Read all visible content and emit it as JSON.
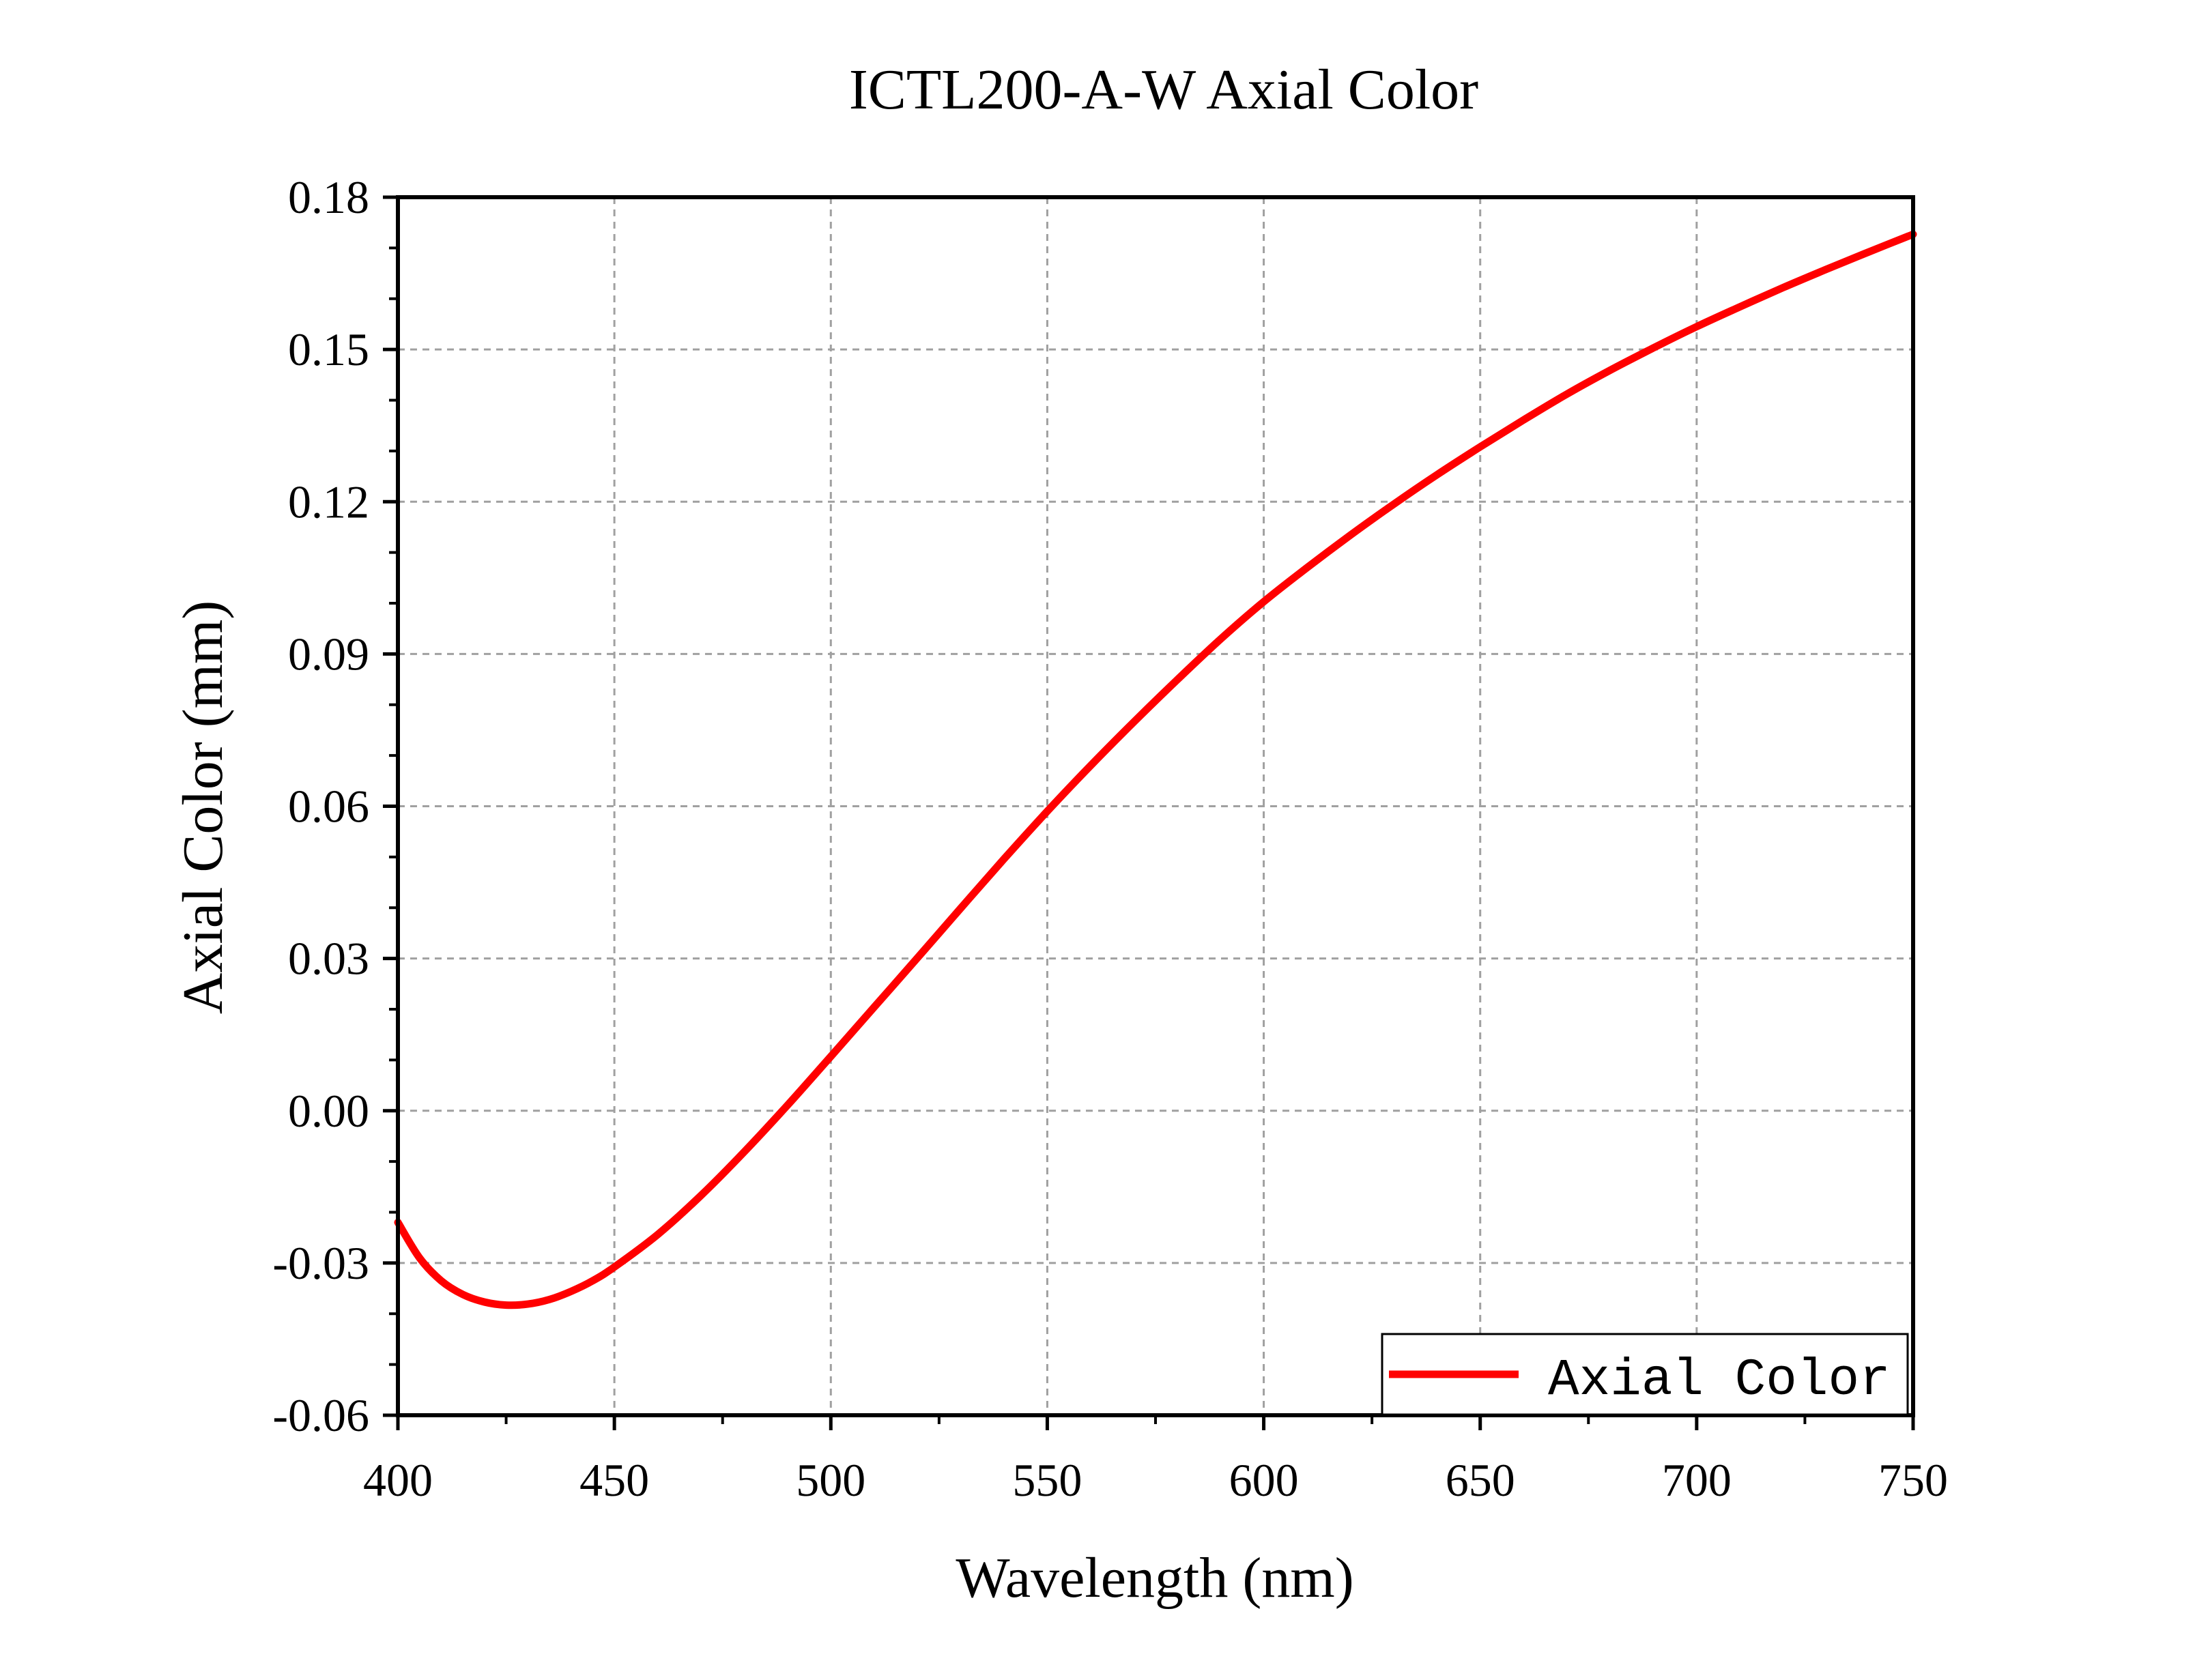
{
  "chart_data": {
    "type": "line",
    "title": "ICTL200-A-W Axial Color",
    "xlabel": "Wavelength (nm)",
    "ylabel": "Axial Color (mm)",
    "xlim": [
      400,
      750
    ],
    "ylim": [
      -0.06,
      0.18
    ],
    "x_ticks": [
      400,
      450,
      500,
      550,
      600,
      650,
      700,
      750
    ],
    "x_tick_labels": [
      "400",
      "450",
      "500",
      "550",
      "600",
      "650",
      "700",
      "750"
    ],
    "y_ticks": [
      -0.06,
      -0.03,
      0.0,
      0.03,
      0.06,
      0.09,
      0.12,
      0.15,
      0.18
    ],
    "y_tick_labels": [
      "-0.06",
      "-0.03",
      "0.00",
      "0.03",
      "0.06",
      "0.09",
      "0.12",
      "0.15",
      "0.18"
    ],
    "grid": true,
    "legend_position": "bottom-right",
    "series": [
      {
        "name": "Axial Color",
        "color": "#ff0000",
        "x": [
          400,
          405,
          410,
          415,
          420,
          425,
          430,
          435,
          440,
          445,
          450,
          460,
          470,
          480,
          490,
          500,
          510,
          520,
          530,
          540,
          550,
          560,
          570,
          580,
          590,
          600,
          610,
          620,
          630,
          640,
          650,
          660,
          670,
          680,
          690,
          700,
          710,
          720,
          730,
          740,
          750
        ],
        "y": [
          -0.022,
          -0.029,
          -0.0335,
          -0.0362,
          -0.0377,
          -0.0383,
          -0.0381,
          -0.0372,
          -0.0356,
          -0.0335,
          -0.0308,
          -0.0244,
          -0.0167,
          -0.0081,
          0.0011,
          0.0107,
          0.0204,
          0.0301,
          0.0399,
          0.0496,
          0.059,
          0.068,
          0.0766,
          0.0849,
          0.0929,
          0.1003,
          0.107,
          0.1134,
          0.1195,
          0.1253,
          0.1308,
          0.1361,
          0.1412,
          0.1459,
          0.1503,
          0.1545,
          0.1584,
          0.1622,
          0.1658,
          0.1693,
          0.1727
        ]
      }
    ]
  }
}
